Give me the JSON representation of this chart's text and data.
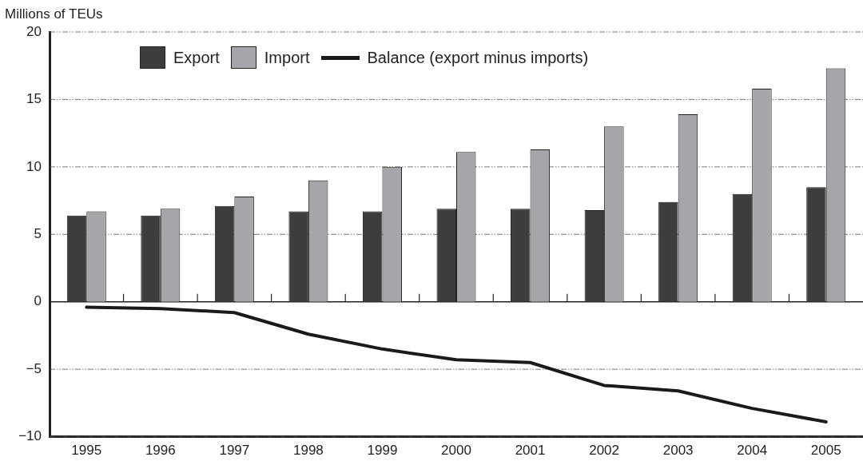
{
  "chart_data": {
    "type": "bar",
    "ylabel": "Millions of TEUs",
    "categories": [
      "1995",
      "1996",
      "1997",
      "1998",
      "1999",
      "2000",
      "2001",
      "2002",
      "2003",
      "2004",
      "2005"
    ],
    "series": [
      {
        "name": "Export",
        "type": "bar",
        "color": "#3d3c3e",
        "values": [
          6.4,
          6.4,
          7.1,
          6.7,
          6.7,
          6.9,
          6.9,
          6.8,
          7.4,
          8.0,
          8.5
        ]
      },
      {
        "name": "Import",
        "type": "bar",
        "color": "#a5a6a9",
        "values": [
          6.7,
          6.9,
          7.8,
          9.0,
          10.0,
          11.1,
          11.3,
          13.0,
          13.9,
          15.8,
          17.3
        ]
      },
      {
        "name": "Balance (export minus imports)",
        "type": "line",
        "color": "#1a1a1a",
        "values": [
          -0.4,
          -0.5,
          -0.8,
          -2.4,
          -3.5,
          -4.3,
          -4.5,
          -6.2,
          -6.6,
          -7.9,
          -8.9
        ]
      }
    ],
    "ylim": [
      -10,
      20
    ],
    "yticks": [
      -10,
      -5,
      0,
      5,
      10,
      15,
      20
    ],
    "grid": "y",
    "legend": "top",
    "marker": "none",
    "line_style": "solid"
  }
}
